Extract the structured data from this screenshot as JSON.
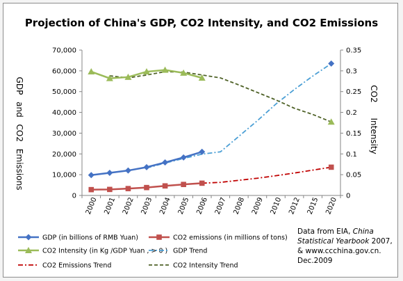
{
  "chart_data": {
    "type": "line",
    "title": "Projection of China's GDP, CO2 Intensity, and CO2 Emissions",
    "ylabel_left": "GDP  and   CO2   Emissions",
    "ylabel_right": "CO2      Intensity",
    "categories": [
      "2000",
      "2001",
      "2002",
      "2003",
      "2004",
      "2005",
      "2006",
      "2007",
      "2008",
      "2009",
      "2010",
      "2012",
      "2015",
      "2020"
    ],
    "y_left": {
      "min": 0,
      "max": 70000,
      "step": 10000,
      "ticks": [
        "0",
        "10,000",
        "20,000",
        "30,000",
        "40,000",
        "50,000",
        "60,000",
        "70,000"
      ]
    },
    "y_right": {
      "min": 0,
      "max": 0.35,
      "step": 0.05,
      "ticks": [
        "0",
        "0.05",
        "0.1",
        "0.15",
        "0.2",
        "0.25",
        "0.3",
        "0.35"
      ]
    },
    "series": [
      {
        "name": "GDP (in billions of  RMB Yuan)",
        "axis": "left",
        "color": "#4472c4",
        "marker": "diamond",
        "style": "solid",
        "values": [
          9800,
          10900,
          12000,
          13600,
          15900,
          18300,
          21000,
          null,
          null,
          null,
          null,
          null,
          null,
          63500
        ]
      },
      {
        "name": "CO2 emissions  (in millions of tons)",
        "axis": "left",
        "color": "#c0504d",
        "marker": "square",
        "style": "solid",
        "values": [
          2800,
          2900,
          3300,
          3800,
          4600,
          5300,
          5900,
          null,
          null,
          null,
          null,
          null,
          null,
          13600
        ]
      },
      {
        "name": "CO2 Intensity (in Kg /GDP Yuan  , > 0 )",
        "axis": "right",
        "color": "#9bbb59",
        "marker": "triangle",
        "style": "solid",
        "values": [
          0.298,
          0.282,
          0.285,
          0.298,
          0.302,
          0.295,
          0.283,
          null,
          null,
          null,
          null,
          null,
          null,
          0.177
        ]
      },
      {
        "name": "GDP Trend",
        "axis": "left",
        "color": "#4b9fd5",
        "marker": "none",
        "style": "dashdot",
        "values": [
          null,
          null,
          null,
          13200,
          15600,
          17800,
          19900,
          21000,
          28500,
          36000,
          44000,
          51000,
          57500,
          63500
        ]
      },
      {
        "name": "CO2  Emissions Trend",
        "axis": "left",
        "color": "#c00000",
        "marker": "none",
        "style": "dashdot",
        "values": [
          null,
          null,
          null,
          null,
          null,
          null,
          5900,
          6300,
          7300,
          8300,
          9500,
          10800,
          12200,
          13600
        ]
      },
      {
        "name": "CO2  Intensity Trend",
        "axis": "right",
        "color": "#4f6228",
        "marker": "none",
        "style": "dash",
        "values": [
          null,
          0.288,
          0.283,
          0.29,
          0.298,
          0.297,
          0.29,
          0.283,
          0.266,
          0.248,
          0.23,
          0.21,
          0.195,
          0.177
        ]
      }
    ],
    "legend_position": "bottom",
    "grid": false
  },
  "source_note": {
    "line1a": "Data from EIA, ",
    "line1b": "China",
    "line2a": "Statistical Yearbook",
    "line2b": " 2007,",
    "line3": "&  www.ccchina.gov.cn.",
    "line4": "Dec.2009"
  }
}
